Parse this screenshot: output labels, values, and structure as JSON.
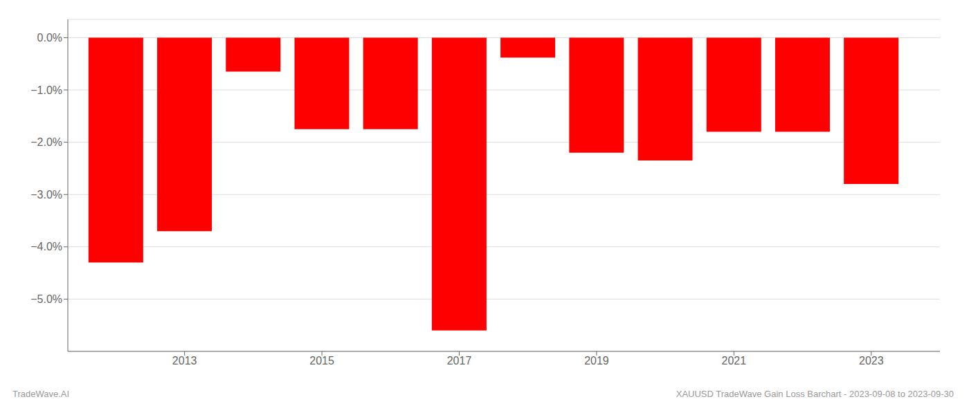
{
  "chart_data": {
    "type": "bar",
    "x": [
      2012,
      2013,
      2014,
      2015,
      2016,
      2017,
      2018,
      2019,
      2020,
      2021,
      2022,
      2023
    ],
    "values": [
      -4.3,
      -3.7,
      -0.65,
      -1.75,
      -1.75,
      -5.6,
      -0.38,
      -2.2,
      -2.35,
      -1.8,
      -1.8,
      -2.8
    ],
    "color": "#ff0000",
    "xlim": [
      2011.3,
      2024.0
    ],
    "xticks": [
      2013,
      2015,
      2017,
      2019,
      2021,
      2023
    ],
    "ylim": [
      -6.0,
      0.35
    ],
    "yticks": [
      {
        "value": 0.0,
        "label": "0.0%"
      },
      {
        "value": -1.0,
        "label": "−1.0%"
      },
      {
        "value": -2.0,
        "label": "−2.0%"
      },
      {
        "value": -3.0,
        "label": "−3.0%"
      },
      {
        "value": -4.0,
        "label": "−4.0%"
      },
      {
        "value": -5.0,
        "label": "−5.0%"
      }
    ],
    "grid": true,
    "annotations": [
      "TradeWave.AI",
      "XAUUSD TradeWave Gain Loss Barchart - 2023-09-08 to 2023-09-30"
    ]
  }
}
